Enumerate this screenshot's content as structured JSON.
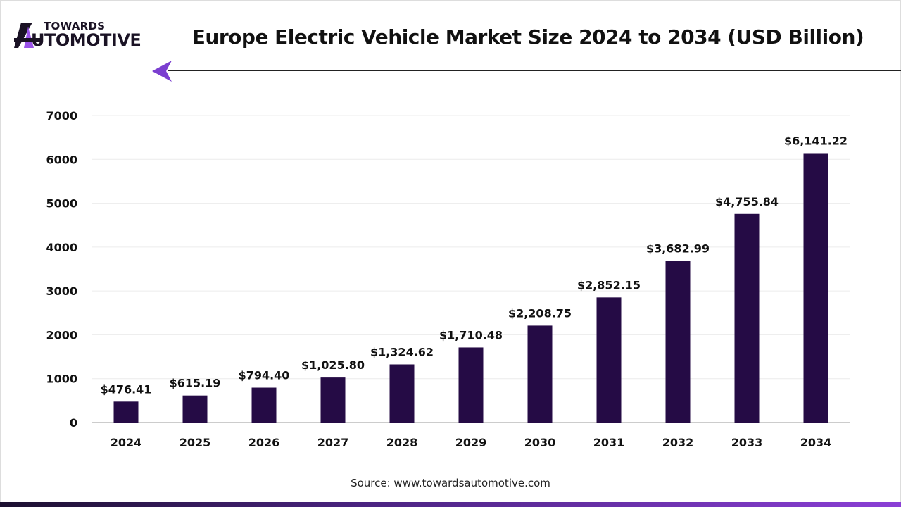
{
  "logo": {
    "line1": "TOWARDS",
    "line2": "UTOMOTIVE",
    "full": "TOWARDS AUTOMOTIVE"
  },
  "source": "Source: www.towardsautomotive.com",
  "colors": {
    "bar": "#250b45",
    "accent": "#7b3fd0",
    "grid": "#ececec"
  },
  "chart_data": {
    "type": "bar",
    "title": "Europe Electric Vehicle Market Size 2024 to 2034 (USD Billion)",
    "categories": [
      "2024",
      "2025",
      "2026",
      "2027",
      "2028",
      "2029",
      "2030",
      "2031",
      "2032",
      "2033",
      "2034"
    ],
    "values": [
      476.41,
      615.19,
      794.4,
      1025.8,
      1324.62,
      1710.48,
      2208.75,
      2852.15,
      3682.99,
      4755.84,
      6141.22
    ],
    "data_labels": [
      "$476.41",
      "$615.19",
      "$794.40",
      "$1,025.80",
      "$1,324.62",
      "$1,710.48",
      "$2,208.75",
      "$2,852.15",
      "$3,682.99",
      "$4,755.84",
      "$6,141.22"
    ],
    "yticks": [
      "0",
      "1000",
      "2000",
      "3000",
      "4000",
      "5000",
      "6000",
      "7000"
    ],
    "ylim": [
      0,
      7000
    ],
    "xlabel": "",
    "ylabel": "",
    "grid": true,
    "legend": "none"
  }
}
